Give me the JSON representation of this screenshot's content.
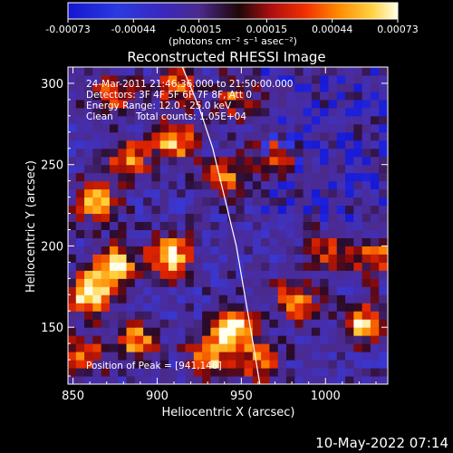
{
  "chart_data": {
    "type": "heatmap",
    "title": "Reconstructed RHESSI Image",
    "xlabel": "Heliocentric X (arcsec)",
    "ylabel": "Heliocentric Y (arcsec)",
    "xlim": [
      847,
      1037
    ],
    "ylim": [
      115,
      310
    ],
    "x_ticks": [
      850,
      900,
      950,
      1000
    ],
    "y_ticks": [
      150,
      200,
      250,
      300
    ],
    "x_tick_labels": [
      "850",
      "900",
      "950",
      "1000"
    ],
    "y_tick_labels": [
      "150",
      "200",
      "250",
      "300"
    ],
    "colorbar": {
      "range": [
        -0.00073,
        0.00073
      ],
      "ticks": [
        "-0.00073",
        "-0.00044",
        "-0.00015",
        "0.00015",
        "0.00044",
        "0.00073"
      ],
      "units_label": "(photons cm⁻² s⁻¹ asec⁻²)"
    },
    "annotations": [
      "24-Mar-2011 21:46:36.000 to 21:50:00.000",
      "Detectors: 3F 4F 5F 6F 7F 8F, Att 0",
      "Energy Range: 12.0 - 25.0 keV",
      "Clean",
      "Total counts: 1.05E+04"
    ],
    "peak_label": "Position of Peak = [941,148]",
    "peak": [
      941,
      148
    ],
    "limb_curve": [
      [
        915,
        310
      ],
      [
        925,
        285
      ],
      [
        933,
        260
      ],
      [
        940,
        230
      ],
      [
        947,
        200
      ],
      [
        952,
        170
      ],
      [
        957,
        140
      ],
      [
        961,
        115
      ]
    ],
    "hotspots": [
      {
        "x": 858,
        "y": 168,
        "v": 1.0
      },
      {
        "x": 872,
        "y": 185,
        "v": 0.9
      },
      {
        "x": 905,
        "y": 192,
        "v": 0.95
      },
      {
        "x": 941,
        "y": 148,
        "v": 1.0
      },
      {
        "x": 928,
        "y": 128,
        "v": 0.75
      },
      {
        "x": 885,
        "y": 140,
        "v": 0.7
      },
      {
        "x": 862,
        "y": 225,
        "v": 0.7
      },
      {
        "x": 880,
        "y": 250,
        "v": 0.65
      },
      {
        "x": 908,
        "y": 262,
        "v": 0.8
      },
      {
        "x": 872,
        "y": 290,
        "v": 0.6
      },
      {
        "x": 910,
        "y": 295,
        "v": 0.55
      },
      {
        "x": 938,
        "y": 240,
        "v": 0.55
      },
      {
        "x": 945,
        "y": 290,
        "v": 0.5
      },
      {
        "x": 980,
        "y": 165,
        "v": 0.65
      },
      {
        "x": 1020,
        "y": 150,
        "v": 0.75
      },
      {
        "x": 1028,
        "y": 190,
        "v": 0.6
      },
      {
        "x": 968,
        "y": 255,
        "v": 0.45
      },
      {
        "x": 855,
        "y": 130,
        "v": 0.55
      },
      {
        "x": 999,
        "y": 195,
        "v": 0.45
      },
      {
        "x": 958,
        "y": 128,
        "v": 0.6
      }
    ],
    "date_stamp": "10-May-2022 07:14"
  }
}
